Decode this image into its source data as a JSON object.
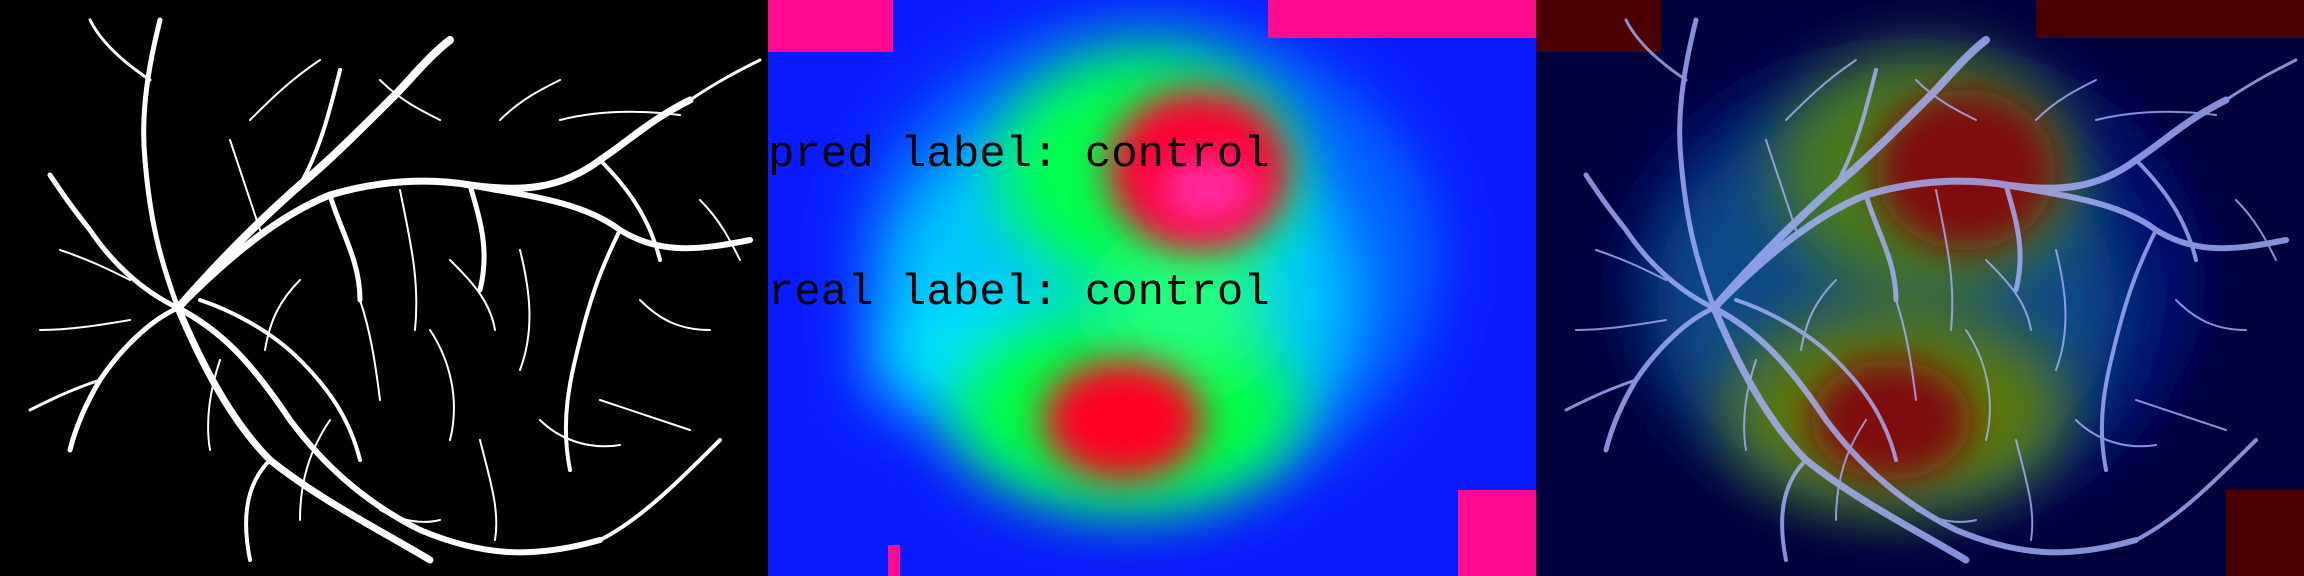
{
  "panels": [
    {
      "name": "vessel-segmentation"
    },
    {
      "name": "attention-heatmap"
    },
    {
      "name": "heatmap-overlay"
    }
  ],
  "overlay": {
    "pred_label": "pred label: control",
    "real_label": "real label: control"
  },
  "colors": {
    "vessel": "#ffffff",
    "heat_low": "#0a1cff",
    "heat_mid": "#00ff3c",
    "heat_high": "#ff0030",
    "heat_peak": "#ff2aa0",
    "overlay_vessel": "#a9b4ff"
  }
}
